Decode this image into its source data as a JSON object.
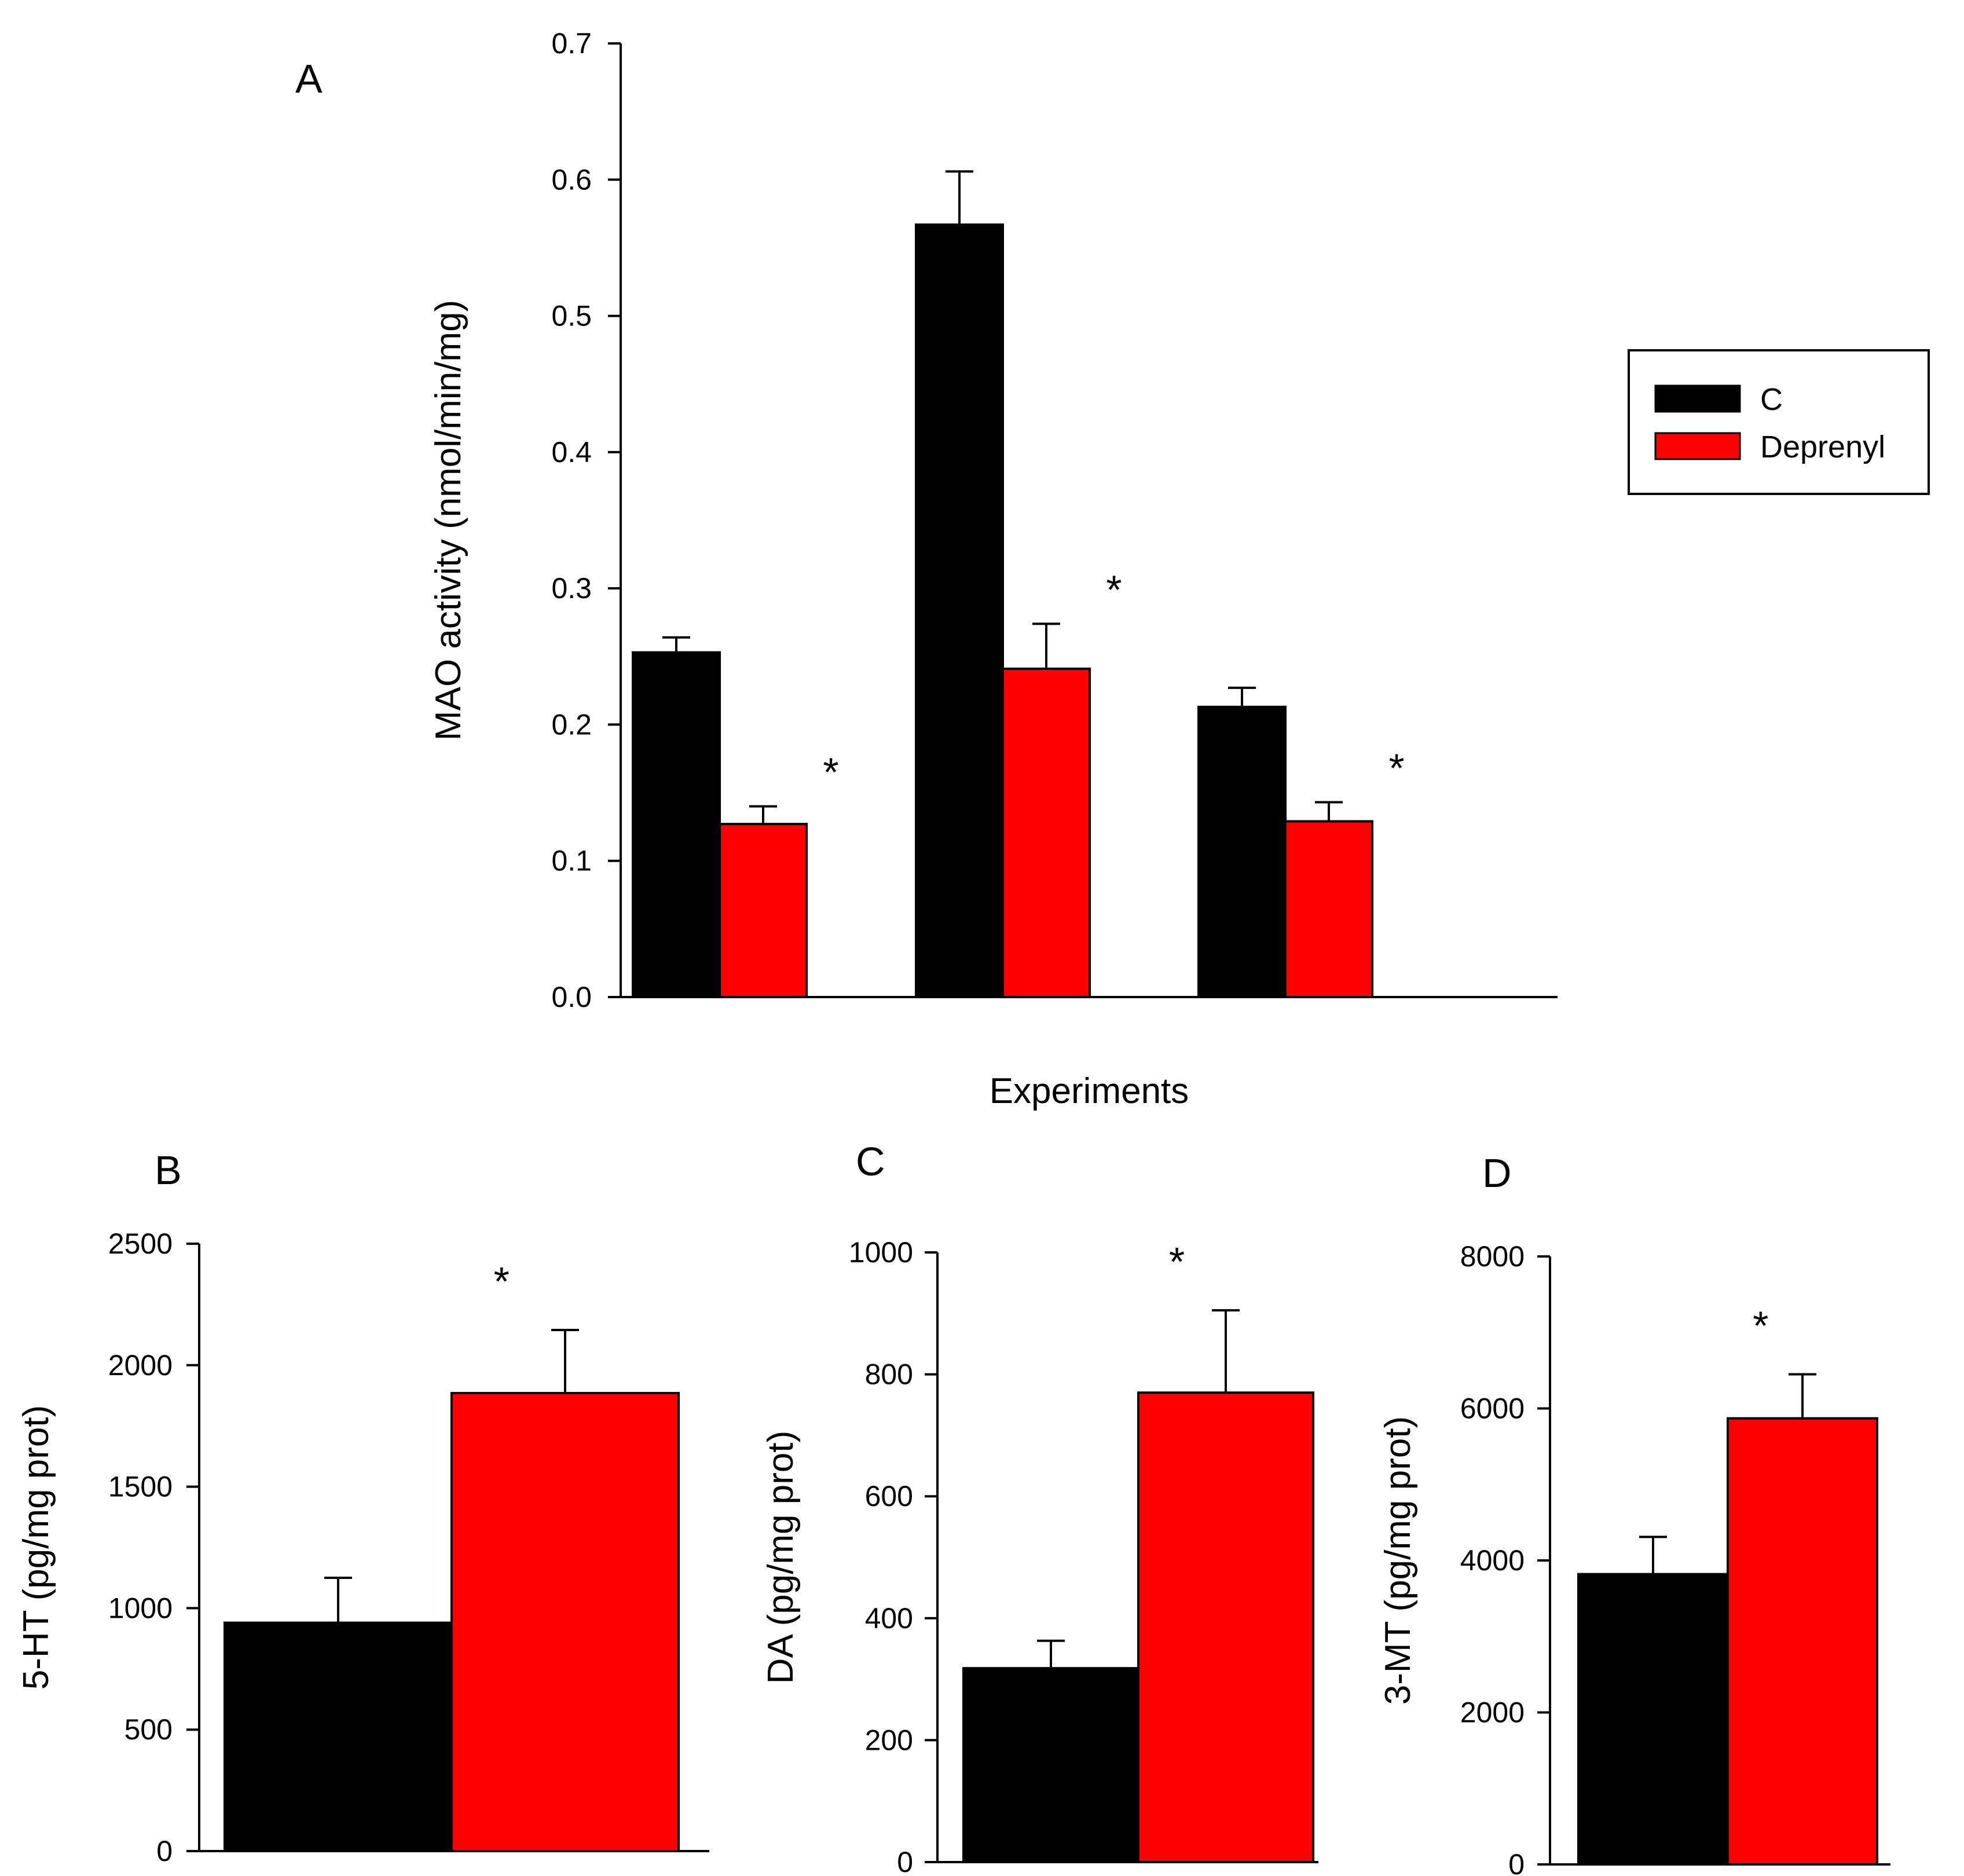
{
  "legend": {
    "entries": [
      {
        "label": "C",
        "color": "#000000"
      },
      {
        "label": "Deprenyl",
        "color": "#ff0000"
      }
    ],
    "placement": "right"
  },
  "colors": {
    "control": "#000000",
    "treatment": "#ff0000",
    "axis": "#000000"
  },
  "chart_data": [
    {
      "panel": "A",
      "type": "bar",
      "ylabel": "MAO activity (nmol/min/mg)",
      "xlabel": "Experiments",
      "ylim": [
        0,
        0.7
      ],
      "yticks": [
        "0.0",
        "0.1",
        "0.2",
        "0.3",
        "0.4",
        "0.5",
        "0.6",
        "0.7"
      ],
      "categories": [
        "",
        "",
        ""
      ],
      "series": [
        {
          "name": "C",
          "color": "#000000",
          "values": [
            0.253,
            0.567,
            0.213
          ],
          "errors": [
            0.011,
            0.039,
            0.014
          ]
        },
        {
          "name": "Deprenyl",
          "color": "#ff0000",
          "values": [
            0.127,
            0.241,
            0.129
          ],
          "errors": [
            0.013,
            0.033,
            0.014
          ]
        }
      ],
      "significance": [
        "*",
        "*",
        "*"
      ]
    },
    {
      "panel": "B",
      "type": "bar",
      "ylabel": "5-HT (pg/mg prot)",
      "ylim": [
        0,
        2500
      ],
      "yticks": [
        "0",
        "500",
        "1000",
        "1500",
        "2000",
        "2500"
      ],
      "series": [
        {
          "name": "C",
          "color": "#000000",
          "values": [
            940
          ],
          "errors": [
            185
          ]
        },
        {
          "name": "Deprenyl",
          "color": "#ff0000",
          "values": [
            1885
          ],
          "errors": [
            260
          ]
        }
      ],
      "significance": [
        "*"
      ]
    },
    {
      "panel": "C",
      "type": "bar",
      "ylabel": "DA (pg/mg prot)",
      "ylim": [
        0,
        1000
      ],
      "yticks": [
        "0",
        "200",
        "400",
        "600",
        "800",
        "1000"
      ],
      "series": [
        {
          "name": "C",
          "color": "#000000",
          "values": [
            318
          ],
          "errors": [
            45
          ]
        },
        {
          "name": "Deprenyl",
          "color": "#ff0000",
          "values": [
            770
          ],
          "errors": [
            135
          ]
        }
      ],
      "significance": [
        "*"
      ]
    },
    {
      "panel": "D",
      "type": "bar",
      "ylabel": "3-MT (pg/mg prot)",
      "ylim": [
        0,
        8000
      ],
      "yticks": [
        "0",
        "2000",
        "4000",
        "6000",
        "8000"
      ],
      "series": [
        {
          "name": "C",
          "color": "#000000",
          "values": [
            3820
          ],
          "errors": [
            490
          ]
        },
        {
          "name": "Deprenyl",
          "color": "#ff0000",
          "values": [
            5870
          ],
          "errors": [
            580
          ]
        }
      ],
      "significance": [
        "*"
      ]
    }
  ]
}
